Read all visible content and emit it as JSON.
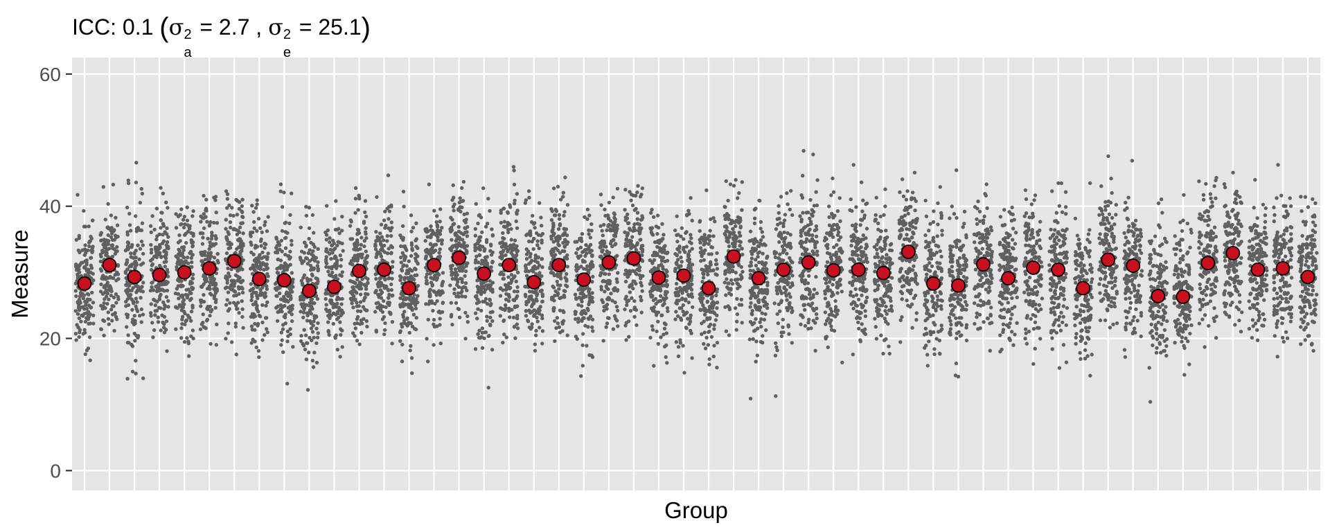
{
  "chart_data": {
    "type": "scatter",
    "title": {
      "prefix": "ICC: 0.1 ",
      "sigma_symbol": "σ",
      "a_sup": "2",
      "a_sub": "a",
      "a_value": " = 2.7 , ",
      "e_sup": "2",
      "e_sub": "e",
      "e_value": " = 25.1"
    },
    "xlabel": "Group",
    "ylabel": "Measure",
    "ylim": [
      -3,
      62.5
    ],
    "yticks": [
      0,
      20,
      40,
      60
    ],
    "ytick_labels": [
      "0",
      "20",
      "40",
      "60"
    ],
    "group_count": 50,
    "group_means": [
      28.3,
      31.1,
      29.3,
      29.6,
      30.0,
      30.6,
      31.7,
      29.0,
      28.8,
      27.2,
      27.8,
      30.2,
      30.4,
      27.6,
      31.1,
      32.2,
      29.8,
      31.1,
      28.5,
      31.1,
      28.9,
      31.5,
      32.1,
      29.2,
      29.5,
      27.6,
      32.4,
      29.1,
      30.4,
      31.5,
      30.3,
      30.4,
      29.9,
      33.1,
      28.3,
      28.0,
      31.2,
      29.1,
      30.7,
      30.4,
      27.6,
      31.9,
      31.0,
      26.4,
      26.3,
      31.4,
      32.9,
      30.4,
      30.6,
      29.3
    ],
    "observation_points_per_group": 160,
    "within_group_sd": 5.0,
    "colors": {
      "panel_background": "#e5e5e5",
      "gridline": "#ffffff",
      "observation_point": "#606060",
      "mean_fill": "#c8101e",
      "mean_stroke": "#000000"
    },
    "grid": true,
    "legend": "none"
  }
}
